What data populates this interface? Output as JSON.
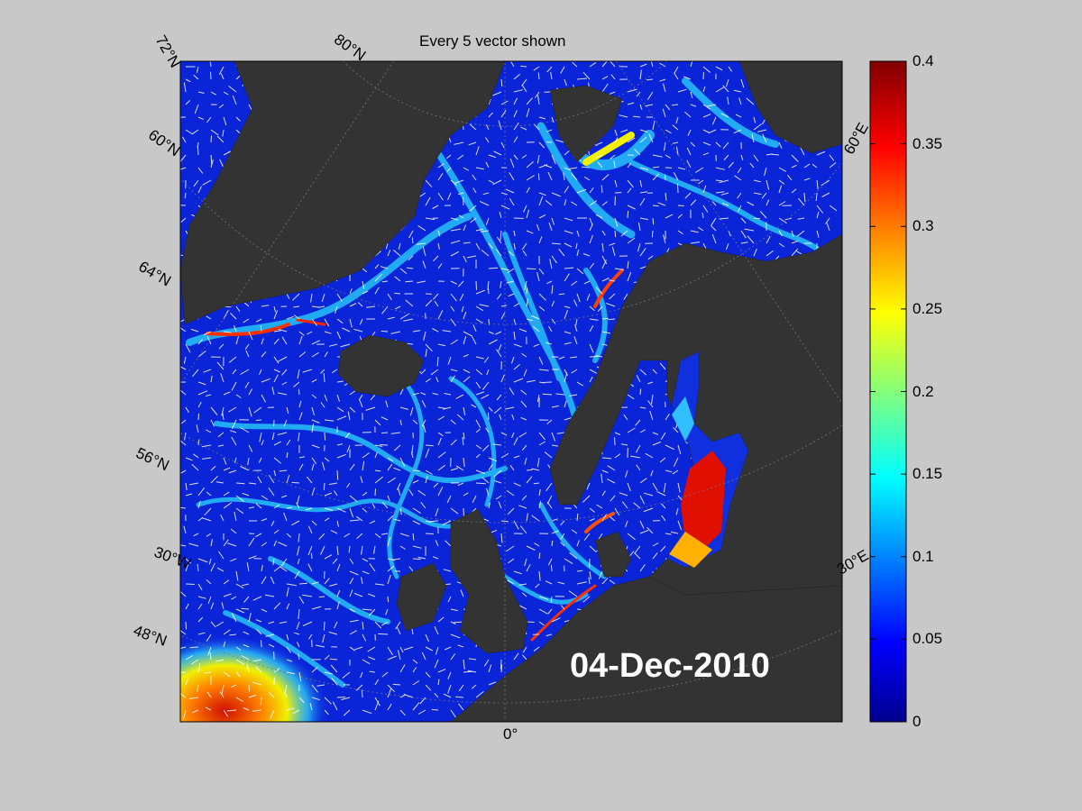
{
  "title": "Every 5 vector shown",
  "date": "04-Dec-2010",
  "graticule_labels": {
    "top": [
      "72°N",
      "80°N"
    ],
    "left": [
      "60°N",
      "64°N",
      "56°N",
      "30°W",
      "48°N"
    ],
    "right": [
      "60°E",
      "30°E"
    ],
    "bottom": [
      "0°"
    ]
  },
  "colorbar": {
    "colormap": "jet",
    "min": 0,
    "max": 0.4,
    "ticks": [
      "0.4",
      "0.35",
      "0.3",
      "0.25",
      "0.2",
      "0.15",
      "0.1",
      "0.05",
      "0"
    ]
  },
  "colors": {
    "land": "#333333",
    "ocean_low": "#0a1fd6",
    "ocean_mid": "#19d6ff",
    "ocean_high": "#e80000",
    "background": "#c8c8c8"
  }
}
